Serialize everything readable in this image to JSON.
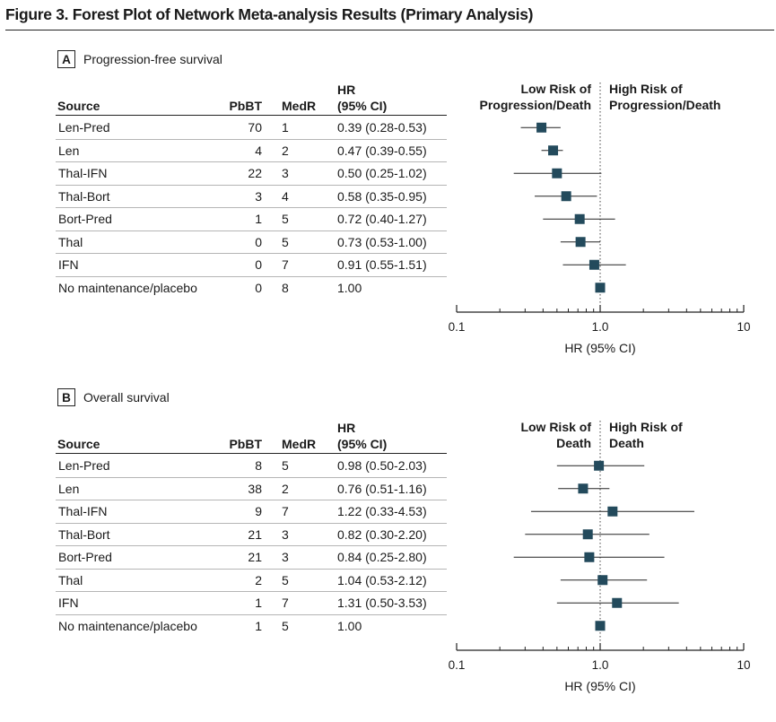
{
  "figure_title": "Figure 3. Forest Plot of Network Meta-analysis Results (Primary Analysis)",
  "panels": [
    {
      "letter": "A",
      "name": "Progression-free survival",
      "headers": {
        "source": "Source",
        "pbbt": "PbBT",
        "medr": "MedR",
        "hr_line1": "HR",
        "hr_line2": "(95% CI)"
      },
      "risk_low": [
        "Low Risk of",
        "Progression/Death"
      ],
      "risk_high": [
        "High Risk of",
        "Progression/Death"
      ],
      "rows": [
        {
          "source": "Len-Pred",
          "pbbt": "70",
          "medr": "1",
          "hr_text": "0.39 (0.28-0.53)"
        },
        {
          "source": "Len",
          "pbbt": "4",
          "medr": "2",
          "hr_text": "0.47 (0.39-0.55)"
        },
        {
          "source": "Thal-IFN",
          "pbbt": "22",
          "medr": "3",
          "hr_text": "0.50 (0.25-1.02)"
        },
        {
          "source": "Thal-Bort",
          "pbbt": "3",
          "medr": "4",
          "hr_text": "0.58 (0.35-0.95)"
        },
        {
          "source": "Bort-Pred",
          "pbbt": "1",
          "medr": "5",
          "hr_text": "0.72 (0.40-1.27)"
        },
        {
          "source": "Thal",
          "pbbt": "0",
          "medr": "5",
          "hr_text": "0.73 (0.53-1.00)"
        },
        {
          "source": "IFN",
          "pbbt": "0",
          "medr": "7",
          "hr_text": "0.91 (0.55-1.51)"
        },
        {
          "source": "No maintenance/placebo",
          "pbbt": "0",
          "medr": "8",
          "hr_text": "1.00"
        }
      ],
      "axis": {
        "ticks": [
          "0.1",
          "1.0",
          "10"
        ],
        "xlabel": "HR (95% CI)"
      }
    },
    {
      "letter": "B",
      "name": "Overall survival",
      "headers": {
        "source": "Source",
        "pbbt": "PbBT",
        "medr": "MedR",
        "hr_line1": "HR",
        "hr_line2": "(95% CI)"
      },
      "risk_low": [
        "Low Risk of",
        "Death"
      ],
      "risk_high": [
        "High Risk of",
        "Death"
      ],
      "rows": [
        {
          "source": "Len-Pred",
          "pbbt": "8",
          "medr": "5",
          "hr_text": "0.98 (0.50-2.03)"
        },
        {
          "source": "Len",
          "pbbt": "38",
          "medr": "2",
          "hr_text": "0.76 (0.51-1.16)"
        },
        {
          "source": "Thal-IFN",
          "pbbt": "9",
          "medr": "7",
          "hr_text": "1.22 (0.33-4.53)"
        },
        {
          "source": "Thal-Bort",
          "pbbt": "21",
          "medr": "3",
          "hr_text": "0.82 (0.30-2.20)"
        },
        {
          "source": "Bort-Pred",
          "pbbt": "21",
          "medr": "3",
          "hr_text": "0.84 (0.25-2.80)"
        },
        {
          "source": "Thal",
          "pbbt": "2",
          "medr": "5",
          "hr_text": "1.04 (0.53-2.12)"
        },
        {
          "source": "IFN",
          "pbbt": "1",
          "medr": "7",
          "hr_text": "1.31 (0.50-3.53)"
        },
        {
          "source": "No maintenance/placebo",
          "pbbt": "1",
          "medr": "5",
          "hr_text": "1.00"
        }
      ],
      "axis": {
        "ticks": [
          "0.1",
          "1.0",
          "10"
        ],
        "xlabel": "HR (95% CI)"
      }
    }
  ],
  "chart_data": [
    {
      "type": "scatter",
      "title": "Progression-free survival",
      "xlabel": "HR (95% CI)",
      "xscale": "log",
      "xlim": [
        0.1,
        10
      ],
      "reference_line": 1.0,
      "categories": [
        "Len-Pred",
        "Len",
        "Thal-IFN",
        "Thal-Bort",
        "Bort-Pred",
        "Thal",
        "IFN",
        "No maintenance/placebo"
      ],
      "hr": [
        0.39,
        0.47,
        0.5,
        0.58,
        0.72,
        0.73,
        0.91,
        1.0
      ],
      "ci_low": [
        0.28,
        0.39,
        0.25,
        0.35,
        0.4,
        0.53,
        0.55,
        null
      ],
      "ci_high": [
        0.53,
        0.55,
        1.02,
        0.95,
        1.27,
        1.0,
        1.51,
        null
      ],
      "marker_color": "#234a5c"
    },
    {
      "type": "scatter",
      "title": "Overall survival",
      "xlabel": "HR (95% CI)",
      "xscale": "log",
      "xlim": [
        0.1,
        10
      ],
      "reference_line": 1.0,
      "categories": [
        "Len-Pred",
        "Len",
        "Thal-IFN",
        "Thal-Bort",
        "Bort-Pred",
        "Thal",
        "IFN",
        "No maintenance/placebo"
      ],
      "hr": [
        0.98,
        0.76,
        1.22,
        0.82,
        0.84,
        1.04,
        1.31,
        1.0
      ],
      "ci_low": [
        0.5,
        0.51,
        0.33,
        0.3,
        0.25,
        0.53,
        0.5,
        null
      ],
      "ci_high": [
        2.03,
        1.16,
        4.53,
        2.2,
        2.8,
        2.12,
        3.53,
        null
      ],
      "marker_color": "#234a5c"
    }
  ]
}
